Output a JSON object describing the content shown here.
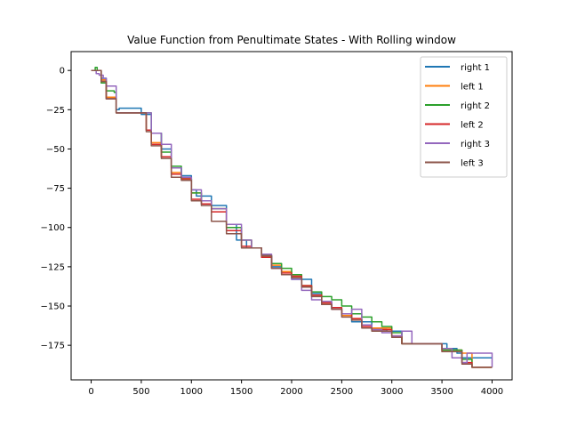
{
  "chart_data": {
    "type": "line",
    "title": "Value Function from Penultimate States - With Rolling window",
    "xlabel": "",
    "ylabel": "",
    "xlim": [
      -200,
      4200
    ],
    "ylim": [
      -197,
      12
    ],
    "xticks": [
      0,
      500,
      1000,
      1500,
      2000,
      2500,
      3000,
      3500,
      4000
    ],
    "xtick_labels": [
      "0",
      "500",
      "1000",
      "1500",
      "2000",
      "2500",
      "3000",
      "3500",
      "4000"
    ],
    "yticks": [
      0,
      -25,
      -50,
      -75,
      -100,
      -125,
      -150,
      -175
    ],
    "ytick_labels": [
      "0",
      "−25",
      "−50",
      "−75",
      "−100",
      "−125",
      "−150",
      "−175"
    ],
    "grid": false,
    "legend_position": "top-right",
    "series": [
      {
        "name": "right 1",
        "color": "#1f77b4",
        "x": [
          0,
          100,
          150,
          250,
          280,
          490,
          500,
          600,
          700,
          800,
          900,
          1000,
          1050,
          1200,
          1350,
          1450,
          1550,
          1700,
          1800,
          1900,
          2000,
          2200,
          2300,
          2400,
          2500,
          2600,
          2800,
          2950,
          3100,
          3400,
          3550,
          3600,
          3650,
          3700,
          4000
        ],
        "y": [
          0,
          -5,
          -18,
          -25,
          -24,
          -24,
          -28,
          -40,
          -50,
          -62,
          -67,
          -76,
          -80,
          -86,
          -98,
          -108,
          -113,
          -118,
          -125,
          -130,
          -133,
          -142,
          -149,
          -152,
          -155,
          -160,
          -165,
          -166,
          -174,
          -174,
          -177,
          -177,
          -180,
          -183,
          -183
        ]
      },
      {
        "name": "left 1",
        "color": "#ff7f0e",
        "x": [
          0,
          100,
          150,
          250,
          500,
          550,
          600,
          700,
          800,
          900,
          1000,
          1100,
          1200,
          1350,
          1500,
          1600,
          1700,
          1800,
          1900,
          2000,
          2100,
          2200,
          2300,
          2400,
          2500,
          2600,
          2700,
          2800,
          3000,
          3100,
          3400,
          3500,
          3700,
          3800,
          4000
        ],
        "y": [
          0,
          -6,
          -17,
          -27,
          -27,
          -38,
          -46,
          -55,
          -65,
          -69,
          -78,
          -83,
          -88,
          -100,
          -108,
          -113,
          -118,
          -124,
          -128,
          -131,
          -137,
          -143,
          -148,
          -152,
          -156,
          -158,
          -162,
          -164,
          -169,
          -174,
          -174,
          -178,
          -180,
          -189,
          -189
        ]
      },
      {
        "name": "right 2",
        "color": "#2ca02c",
        "x": [
          0,
          40,
          60,
          100,
          150,
          200,
          230,
          250,
          500,
          600,
          700,
          800,
          900,
          1000,
          1100,
          1200,
          1350,
          1500,
          1600,
          1700,
          1800,
          1900,
          2000,
          2100,
          2200,
          2300,
          2400,
          2500,
          2600,
          2700,
          2800,
          2900,
          3000,
          3100,
          3400,
          3500,
          3700,
          3800,
          4000
        ],
        "y": [
          0,
          2,
          0,
          -8,
          -13,
          -13,
          -14,
          -27,
          -27,
          -40,
          -52,
          -61,
          -69,
          -78,
          -83,
          -88,
          -100,
          -108,
          -113,
          -118,
          -123,
          -126,
          -130,
          -137,
          -141,
          -144,
          -146,
          -150,
          -155,
          -157,
          -160,
          -163,
          -167,
          -174,
          -174,
          -178,
          -184,
          -189,
          -189
        ]
      },
      {
        "name": "left 2",
        "color": "#d62728",
        "x": [
          0,
          100,
          150,
          250,
          500,
          550,
          600,
          700,
          800,
          900,
          1000,
          1100,
          1200,
          1350,
          1500,
          1600,
          1700,
          1800,
          1900,
          2000,
          2100,
          2200,
          2300,
          2400,
          2500,
          2600,
          2700,
          2800,
          3000,
          3100,
          3400,
          3500,
          3700,
          3800,
          4000
        ],
        "y": [
          0,
          -7,
          -18,
          -27,
          -27,
          -38,
          -47,
          -55,
          -66,
          -69,
          -82,
          -85,
          -90,
          -102,
          -112,
          -113,
          -119,
          -126,
          -129,
          -131,
          -137,
          -143,
          -148,
          -151,
          -155,
          -158,
          -163,
          -165,
          -169,
          -174,
          -174,
          -179,
          -186,
          -189,
          -189
        ]
      },
      {
        "name": "right 3",
        "color": "#9467bd",
        "x": [
          0,
          50,
          80,
          120,
          150,
          250,
          500,
          600,
          700,
          800,
          900,
          1000,
          1100,
          1200,
          1350,
          1500,
          1600,
          1700,
          1800,
          1900,
          2000,
          2100,
          2200,
          2300,
          2400,
          2500,
          2600,
          2700,
          2800,
          2900,
          3000,
          3100,
          3150,
          3200,
          3400,
          3500,
          3600,
          3700,
          3750,
          3800,
          4000
        ],
        "y": [
          0,
          -2,
          -3,
          -5,
          -10,
          -27,
          -27,
          -40,
          -47,
          -62,
          -68,
          -76,
          -83,
          -88,
          -98,
          -108,
          -113,
          -117,
          -126,
          -130,
          -133,
          -140,
          -146,
          -147,
          -152,
          -155,
          -152,
          -162,
          -165,
          -167,
          -169,
          -166,
          -166,
          -174,
          -174,
          -177,
          -183,
          -186,
          -180,
          -180,
          -189
        ]
      },
      {
        "name": "left 3",
        "color": "#8c564b",
        "x": [
          0,
          100,
          150,
          250,
          500,
          550,
          600,
          700,
          800,
          900,
          1000,
          1100,
          1200,
          1350,
          1500,
          1600,
          1700,
          1800,
          1900,
          2000,
          2100,
          2200,
          2300,
          2400,
          2500,
          2600,
          2700,
          2800,
          3000,
          3100,
          3400,
          3500,
          3700,
          3800,
          4000
        ],
        "y": [
          0,
          -7,
          -18,
          -27,
          -27,
          -39,
          -48,
          -56,
          -68,
          -70,
          -83,
          -86,
          -96,
          -104,
          -113,
          -113,
          -118,
          -126,
          -130,
          -132,
          -138,
          -144,
          -149,
          -152,
          -157,
          -159,
          -164,
          -166,
          -170,
          -174,
          -174,
          -179,
          -187,
          -189,
          -189
        ]
      }
    ]
  }
}
